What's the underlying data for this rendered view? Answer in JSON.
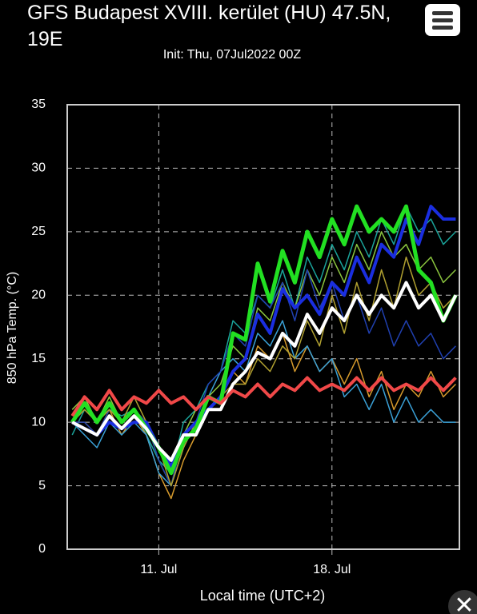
{
  "chart_data": {
    "type": "line",
    "title": "GFS Budapest XVIII. kerület (HU) 47.5N, 19E",
    "subtitle": "Init: Thu, 07Jul2022 00Z",
    "xlabel": "Local time (UTC+2)",
    "ylabel": "850 hPa Temp. (°C)",
    "x": [
      7.5,
      8,
      8.5,
      9,
      9.5,
      10,
      10.5,
      11,
      11.5,
      12,
      12.5,
      13,
      13.5,
      14,
      14.5,
      15,
      15.5,
      16,
      16.5,
      17,
      17.5,
      18,
      18.5,
      19,
      19.5,
      20,
      20.5,
      21,
      21.5,
      22,
      22.5,
      23
    ],
    "xlim": [
      7.3,
      23.15
    ],
    "xticks": [
      {
        "value": 11,
        "label": "11. Jul"
      },
      {
        "value": 18,
        "label": "18. Jul"
      }
    ],
    "ylim": [
      0,
      35
    ],
    "yticks": [
      0,
      5,
      10,
      15,
      20,
      25,
      30,
      35
    ],
    "grid": true,
    "series": [
      {
        "color": "#1aa39a",
        "width": 1.5,
        "values": [
          9,
          11,
          10,
          11,
          10.5,
          11,
          9,
          7,
          6,
          10,
          11,
          13,
          14,
          18,
          17,
          20,
          19,
          22,
          19,
          23,
          21,
          24,
          22,
          25,
          23,
          26,
          24,
          27,
          25,
          26,
          24,
          25
        ]
      },
      {
        "color": "#d69a2c",
        "width": 1.5,
        "values": [
          10,
          10,
          9,
          11,
          9,
          10.5,
          9,
          6,
          4,
          7,
          9,
          11,
          12,
          14,
          13,
          16,
          15,
          17,
          14,
          16,
          14,
          15,
          13,
          15,
          12,
          14,
          11,
          13,
          12,
          14,
          12,
          13
        ]
      },
      {
        "color": "#3aa0d6",
        "width": 1.5,
        "values": [
          10,
          9,
          8,
          10,
          9,
          10,
          9,
          6,
          5,
          8,
          10,
          12,
          14,
          15,
          14,
          17,
          16,
          18,
          15,
          16,
          14,
          15,
          12,
          13,
          11,
          13,
          10,
          12,
          10,
          11,
          10,
          10
        ]
      },
      {
        "color": "#8cc63f",
        "width": 1.5,
        "values": [
          11,
          12,
          10,
          12,
          10,
          11,
          10,
          7,
          5,
          9,
          11,
          12,
          13,
          16,
          15,
          19,
          18,
          21,
          19,
          22,
          20,
          23,
          21,
          24,
          22,
          25,
          23,
          24,
          22,
          23,
          21,
          22
        ]
      },
      {
        "color": "#2040b0",
        "width": 1.5,
        "values": [
          10,
          10,
          9,
          11,
          10,
          11,
          10,
          7,
          5,
          9,
          10,
          13,
          14,
          17,
          16,
          20,
          19,
          21,
          18,
          22,
          19,
          21,
          18,
          20,
          17,
          19,
          16,
          18,
          16,
          17,
          15,
          16
        ]
      },
      {
        "color": "#b0a030",
        "width": 1.5,
        "values": [
          10,
          11,
          10,
          11,
          10,
          12,
          10,
          8,
          5,
          8,
          10,
          11,
          12,
          13,
          13,
          15,
          14,
          16,
          15,
          18,
          16,
          20,
          17,
          21,
          18,
          22,
          19,
          23,
          20,
          21,
          19,
          20
        ]
      },
      {
        "color": "#1a2ee0",
        "width": 4,
        "values": [
          10,
          9.5,
          9,
          10,
          9.5,
          10,
          10,
          8,
          6.5,
          9,
          10,
          11,
          12,
          14,
          15,
          18.5,
          17,
          20.5,
          19,
          20,
          18.5,
          21,
          20,
          23,
          21,
          24,
          23,
          26,
          24,
          27,
          26,
          26
        ]
      },
      {
        "color": "#22e022",
        "width": 5,
        "values": [
          10,
          11.5,
          10,
          11.5,
          10,
          11,
          9.5,
          8,
          6,
          8.5,
          9.5,
          12,
          11.5,
          17,
          16.5,
          22.5,
          19.5,
          23.5,
          21,
          25,
          23,
          26,
          24,
          27,
          25,
          26,
          25,
          27,
          22,
          21,
          18,
          20
        ]
      },
      {
        "color": "#ffffff",
        "width": 4,
        "values": [
          10,
          9.5,
          9,
          10.5,
          9.5,
          10.5,
          9.5,
          8,
          7,
          9,
          9,
          11,
          11,
          13,
          14,
          15.5,
          15,
          17,
          16,
          18.5,
          17,
          19,
          18,
          20,
          18.5,
          20,
          19,
          21,
          19,
          20,
          18,
          20
        ]
      },
      {
        "color": "#f04848",
        "width": 4,
        "values": [
          10.5,
          12,
          11,
          12.5,
          11,
          12,
          11.5,
          12.5,
          11.5,
          12,
          11,
          12,
          11.5,
          12.5,
          12,
          13,
          12,
          13,
          12.5,
          13.5,
          12.5,
          13,
          12.5,
          13.5,
          12.5,
          13.5,
          12.5,
          13,
          12.5,
          13.5,
          12.5,
          13.5
        ]
      }
    ]
  }
}
